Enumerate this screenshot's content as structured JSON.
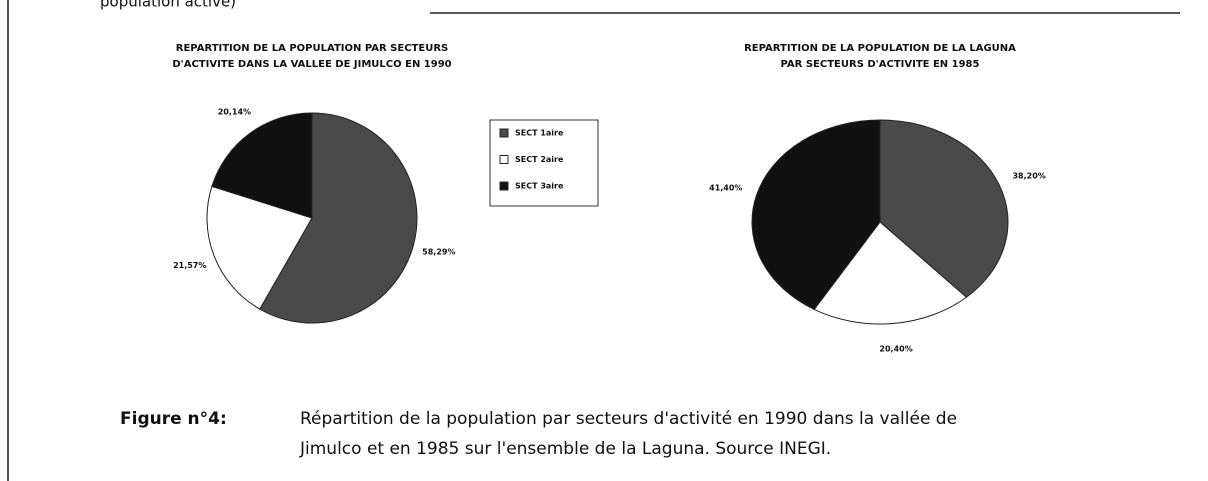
{
  "page_top_text": "population active)",
  "chart_data": [
    {
      "type": "pie",
      "title": [
        "REPARTITION DE LA POPULATION PAR SECTEURS",
        "D'ACTIVITE DANS LA VALLEE DE JIMULCO EN 1990"
      ],
      "categories": [
        "SECT 1aire",
        "SECT 2aire",
        "SECT 3aire"
      ],
      "values": [
        58.29,
        21.57,
        20.14
      ],
      "value_labels": [
        "58,29%",
        "21,57%",
        "20,14%"
      ],
      "colors": [
        "#4a4a4a",
        "#ffffff",
        "#111111"
      ]
    },
    {
      "type": "pie",
      "title": [
        "REPARTITION DE LA POPULATION DE LA LAGUNA",
        "PAR SECTEURS D'ACTIVITE EN 1985"
      ],
      "values": [
        38.2,
        20.4,
        41.4
      ],
      "value_labels": [
        "38,20%",
        "20,40%",
        "41,40%"
      ],
      "colors": [
        "#4a4a4a",
        "#ffffff",
        "#111111"
      ]
    }
  ],
  "caption": {
    "label": "Figure n°4:",
    "lines": [
      "Répartition de la population par secteurs d'activité en 1990 dans la vallée de",
      "Jimulco et en 1985 sur l'ensemble de la Laguna. Source INEGI."
    ]
  }
}
